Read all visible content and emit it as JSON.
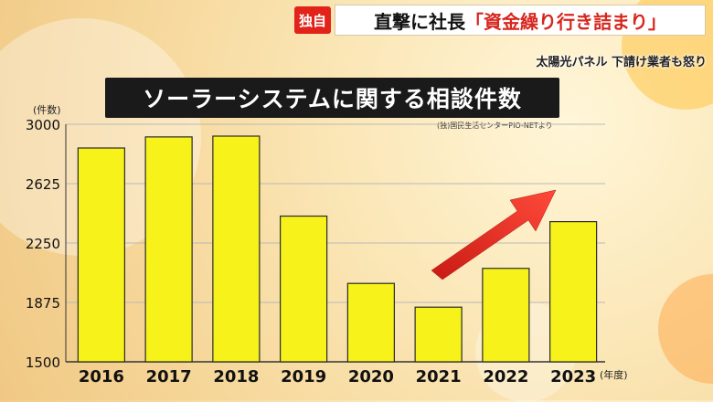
{
  "header": {
    "badge": "独自",
    "headline_main": "直撃に社長",
    "headline_quote": "「資金繰り行き詰まり」",
    "subheadline": "太陽光パネル 下請け業者も怒り"
  },
  "chart_data": {
    "type": "bar",
    "title": "ソーラーシステムに関する相談件数",
    "source": "(独)国民生活センターPIO-NETより",
    "ylabel": "(件数)",
    "xlabel": "(年度)",
    "categories": [
      "2016",
      "2017",
      "2018",
      "2019",
      "2020",
      "2021",
      "2022",
      "2023"
    ],
    "values": [
      2850,
      2920,
      2925,
      2420,
      1995,
      1845,
      2090,
      2385
    ],
    "ylim": [
      1500,
      3000
    ],
    "yticks": [
      "3000",
      "2625",
      "2250",
      "1875",
      "1500"
    ],
    "grid": true,
    "bar_color": "#f6f21a",
    "arrow_color": "#e02a1f",
    "annotation": "upward-trend-arrow"
  }
}
